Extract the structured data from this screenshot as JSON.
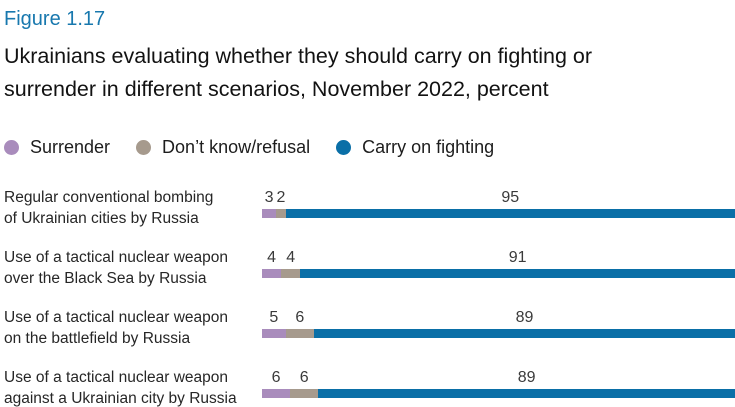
{
  "header": {
    "figure_label": "Figure 1.17",
    "title_lines": [
      "Ukrainians evaluating whether they should carry on fighting or",
      "surrender in different scenarios, November 2022, percent"
    ]
  },
  "chart_data": {
    "type": "bar",
    "orientation": "horizontal",
    "stacked": true,
    "title": "Ukrainians evaluating whether they should carry on fighting or surrender in different scenarios, November 2022, percent",
    "figure_label": "Figure 1.17",
    "unit": "percent",
    "xlim": [
      0,
      100
    ],
    "legend_position": "top",
    "value_labels_position": "above segments, centered",
    "categories": [
      "Regular conventional bombing of Ukrainian cities by Russia",
      "Use of a tactical nuclear weapon over the Black Sea by Russia",
      "Use of a tactical nuclear weapon on the battlefield by Russia",
      "Use of a tactical nuclear weapon against a Ukrainian city by Russia"
    ],
    "category_lines": [
      [
        "Regular conventional bombing",
        "of Ukrainian cities by Russia"
      ],
      [
        "Use of a tactical nuclear weapon",
        "over the Black Sea by Russia"
      ],
      [
        "Use of a tactical nuclear weapon",
        "on the battlefield by Russia"
      ],
      [
        "Use of a tactical nuclear weapon",
        "against a Ukrainian city by Russia"
      ]
    ],
    "series": [
      {
        "name": "Surrender",
        "color": "#a98cbc",
        "values": [
          3,
          4,
          5,
          6
        ]
      },
      {
        "name": "Don’t know/refusal",
        "color": "#a69a8d",
        "values": [
          2,
          4,
          6,
          6
        ]
      },
      {
        "name": "Carry on fighting",
        "color": "#0a6fa7",
        "values": [
          95,
          91,
          89,
          89
        ]
      }
    ]
  },
  "colors": {
    "figure_label": "#1878ae",
    "title_text": "#121212",
    "category_text": "#262626",
    "value_text": "#3a3a3a",
    "background": "#ffffff"
  }
}
